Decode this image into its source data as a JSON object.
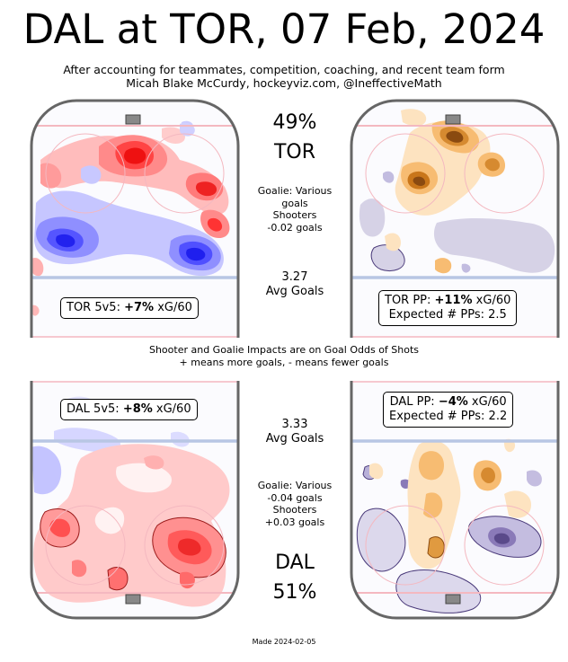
{
  "title": "DAL at TOR, 07 Feb, 2024",
  "subtitle_line1": "After accounting for teammates, competition, coaching, and recent team form",
  "subtitle_line2": "Micah Blake McCurdy, hockeyviz.com, @IneffectiveMath",
  "center_note_line1": "Shooter and Goalie Impacts are on Goal Odds of Shots",
  "center_note_line2": "+ means more goals, - means fewer goals",
  "made": "Made 2024-02-05",
  "tor": {
    "pct": "49%",
    "team": "TOR",
    "goalie_line1": "Goalie: Various",
    "goalie_line2": "goals",
    "shooters_label": "Shooters",
    "shooters_value": "-0.02 goals",
    "avg_value": "3.27",
    "avg_label": "Avg Goals",
    "ev_prefix": "TOR 5v5: ",
    "ev_value": "+7%",
    "ev_suffix": " xG/60",
    "pp_prefix": "TOR PP: ",
    "pp_value": "+11%",
    "pp_suffix": " xG/60",
    "pp_expected": "Expected # PPs: 2.5"
  },
  "dal": {
    "pct": "51%",
    "team": "DAL",
    "goalie_line1": "Goalie: Various",
    "goalie_line2": "-0.04 goals",
    "shooters_label": "Shooters",
    "shooters_value": "+0.03 goals",
    "avg_value": "3.33",
    "avg_label": "Avg Goals",
    "ev_prefix": "DAL 5v5: ",
    "ev_value": "+8%",
    "ev_suffix": " xG/60",
    "pp_prefix": "DAL PP: ",
    "pp_value": "−4%",
    "pp_suffix": " xG/60",
    "pp_expected": "Expected # PPs: 2.2"
  },
  "colors": {
    "more": "#ff3030",
    "fewer": "#3a3aff",
    "pp_more": "#e89a30",
    "pp_fewer": "#6a5a9a",
    "rink_outline": "#666666",
    "goal_line": "#f4b8c0",
    "blue_line": "#b8c6e4"
  }
}
